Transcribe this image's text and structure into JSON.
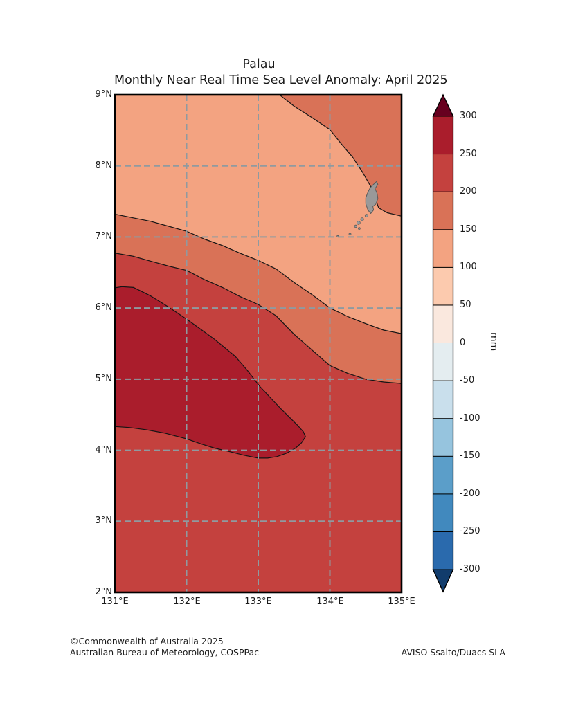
{
  "title": {
    "line1": "Palau",
    "line2": "Monthly Near Real Time Sea Level Anomaly: April 2025"
  },
  "map": {
    "x_axis": {
      "ticks": [
        {
          "label": "131°E",
          "lon": 131
        },
        {
          "label": "132°E",
          "lon": 132
        },
        {
          "label": "133°E",
          "lon": 133
        },
        {
          "label": "134°E",
          "lon": 134
        },
        {
          "label": "135°E",
          "lon": 135
        }
      ]
    },
    "y_axis": {
      "ticks": [
        {
          "label": "9°N",
          "lat": 9
        },
        {
          "label": "8°N",
          "lat": 8
        },
        {
          "label": "7°N",
          "lat": 7
        },
        {
          "label": "6°N",
          "lat": 6
        },
        {
          "label": "5°N",
          "lat": 5
        },
        {
          "label": "4°N",
          "lat": 4
        },
        {
          "label": "3°N",
          "lat": 3
        },
        {
          "label": "2°N",
          "lat": 2
        }
      ]
    }
  },
  "colorbar": {
    "unit": "mm",
    "range_mm": [
      -300,
      300
    ],
    "ticks": [
      {
        "label": "300",
        "value": 300
      },
      {
        "label": "250",
        "value": 250
      },
      {
        "label": "200",
        "value": 200
      },
      {
        "label": "150",
        "value": 150
      },
      {
        "label": "100",
        "value": 100
      },
      {
        "label": "50",
        "value": 50
      },
      {
        "label": "0",
        "value": 0
      },
      {
        "label": "-50",
        "value": -50
      },
      {
        "label": "-100",
        "value": -100
      },
      {
        "label": "-150",
        "value": -150
      },
      {
        "label": "-200",
        "value": -200
      },
      {
        "label": "-250",
        "value": -250
      },
      {
        "label": "-300",
        "value": -300
      }
    ],
    "bands": [
      {
        "from": -300,
        "to": -250,
        "color": "#2a6aad"
      },
      {
        "from": -250,
        "to": -200,
        "color": "#4189be"
      },
      {
        "from": -200,
        "to": -150,
        "color": "#5b9ec9"
      },
      {
        "from": -150,
        "to": -100,
        "color": "#96c4de"
      },
      {
        "from": -100,
        "to": -50,
        "color": "#c9dfec"
      },
      {
        "from": -50,
        "to": 0,
        "color": "#e4edf0"
      },
      {
        "from": 0,
        "to": 50,
        "color": "#fae8de"
      },
      {
        "from": 50,
        "to": 100,
        "color": "#fccaae"
      },
      {
        "from": 100,
        "to": 150,
        "color": "#f3a381"
      },
      {
        "from": 150,
        "to": 200,
        "color": "#d97257"
      },
      {
        "from": 200,
        "to": 250,
        "color": "#c4413e"
      },
      {
        "from": 250,
        "to": 300,
        "color": "#aa1d2c"
      }
    ],
    "arrow_over_color": "#67001f",
    "arrow_under_color": "#113c6c"
  },
  "footer": {
    "copyright": "©Commonwealth of Australia 2025",
    "organisation": "Australian Bureau of Meteorology, COSPPac",
    "source": "AVISO Ssalto/Duacs SLA"
  },
  "chart_data": {
    "type": "heatmap",
    "subtype": "filled-contour-map",
    "title": "Palau — Monthly Near Real Time Sea Level Anomaly: April 2025",
    "unit": "mm",
    "lon_range": [
      131,
      135
    ],
    "lat_range": [
      2,
      9
    ],
    "contour_interval_mm": 50,
    "bands_present_on_map_mm": [
      [
        100,
        150
      ],
      [
        150,
        200
      ],
      [
        200,
        250
      ],
      [
        250,
        300
      ]
    ],
    "max_anomaly_band_mm": [
      250,
      300
    ],
    "max_anomaly_centre": {
      "lon": 132.3,
      "lat": 5.1
    },
    "gridlines": {
      "lons": [
        132,
        133,
        134
      ],
      "lats": [
        3,
        4,
        5,
        6,
        7,
        8
      ]
    },
    "contours": [
      {
        "value_mm": 150,
        "points": [
          [
            130.9,
            7.34
          ],
          [
            131.25,
            7.27
          ],
          [
            131.5,
            7.22
          ],
          [
            131.75,
            7.15
          ],
          [
            132,
            7.08
          ],
          [
            132.25,
            6.97
          ],
          [
            132.5,
            6.88
          ],
          [
            132.75,
            6.77
          ],
          [
            133,
            6.67
          ],
          [
            133.25,
            6.55
          ],
          [
            133.5,
            6.36
          ],
          [
            133.75,
            6.19
          ],
          [
            134,
            6.0
          ],
          [
            134.25,
            5.88
          ],
          [
            134.5,
            5.78
          ],
          [
            134.75,
            5.69
          ],
          [
            135.1,
            5.62
          ]
        ]
      },
      {
        "value_mm": 200,
        "points": [
          [
            130.9,
            6.79
          ],
          [
            131.25,
            6.73
          ],
          [
            131.5,
            6.66
          ],
          [
            131.75,
            6.59
          ],
          [
            132,
            6.53
          ],
          [
            132.25,
            6.4
          ],
          [
            132.5,
            6.29
          ],
          [
            132.75,
            6.16
          ],
          [
            133,
            6.05
          ],
          [
            133.25,
            5.89
          ],
          [
            133.5,
            5.63
          ],
          [
            133.75,
            5.41
          ],
          [
            134,
            5.19
          ],
          [
            134.25,
            5.08
          ],
          [
            134.5,
            5.0
          ],
          [
            134.75,
            4.96
          ],
          [
            135.1,
            4.93
          ]
        ]
      },
      {
        "value_mm": 150,
        "points": [
          [
            133.17,
            9.1
          ],
          [
            133.5,
            8.84
          ],
          [
            133.75,
            8.68
          ],
          [
            134,
            8.51
          ],
          [
            134.15,
            8.32
          ],
          [
            134.32,
            8.12
          ],
          [
            134.45,
            7.92
          ],
          [
            134.57,
            7.71
          ],
          [
            134.63,
            7.55
          ],
          [
            134.68,
            7.41
          ],
          [
            134.8,
            7.34
          ],
          [
            135.1,
            7.27
          ]
        ]
      },
      {
        "value_mm": 250,
        "points": [
          [
            130.9,
            6.27
          ],
          [
            131.1,
            6.3
          ],
          [
            131.26,
            6.29
          ],
          [
            131.5,
            6.17
          ],
          [
            131.74,
            6.02
          ],
          [
            132.02,
            5.83
          ],
          [
            132.2,
            5.7
          ],
          [
            132.39,
            5.56
          ],
          [
            132.68,
            5.32
          ],
          [
            132.85,
            5.12
          ],
          [
            133.02,
            4.9
          ],
          [
            133.17,
            4.74
          ],
          [
            133.31,
            4.59
          ],
          [
            133.45,
            4.45
          ],
          [
            133.55,
            4.35
          ],
          [
            133.63,
            4.26
          ],
          [
            133.66,
            4.19
          ],
          [
            133.6,
            4.1
          ],
          [
            133.52,
            4.03
          ],
          [
            133.4,
            3.96
          ],
          [
            133.26,
            3.91
          ],
          [
            133.13,
            3.89
          ],
          [
            133.0,
            3.89
          ],
          [
            132.8,
            3.93
          ],
          [
            132.6,
            3.98
          ],
          [
            132.39,
            4.03
          ],
          [
            132.2,
            4.09
          ],
          [
            132.0,
            4.16
          ],
          [
            131.7,
            4.24
          ],
          [
            131.43,
            4.29
          ],
          [
            131.2,
            4.32
          ],
          [
            130.9,
            4.34
          ]
        ]
      }
    ],
    "regions": [
      {
        "band_mm": [
          200,
          250
        ],
        "color": "#c4413e",
        "contour_ref": null,
        "closure": [
          [
            130.9,
            9.1
          ],
          [
            135.1,
            9.1
          ],
          [
            135.1,
            1.9
          ],
          [
            130.9,
            1.9
          ]
        ]
      },
      {
        "band_mm": [
          150,
          200
        ],
        "color": "#d97257",
        "contour_ref": 1,
        "closure": [
          [
            136,
            10
          ],
          [
            130,
            10
          ]
        ]
      },
      {
        "band_mm": [
          100,
          150
        ],
        "color": "#f3a381",
        "contour_ref": 0,
        "closure": [
          [
            136,
            10
          ],
          [
            130,
            10
          ]
        ]
      },
      {
        "band_mm": [
          150,
          200
        ],
        "color": "#d97257",
        "contour_ref": 2,
        "closure": [
          [
            136,
            10
          ]
        ]
      },
      {
        "band_mm": [
          250,
          300
        ],
        "color": "#aa1d2c",
        "contour_ref": 3,
        "closure": []
      }
    ],
    "island": {
      "label": "Palau",
      "fill": "#999999",
      "stroke": "#595959",
      "main_outline": [
        [
          134.61,
          7.74
        ],
        [
          134.65,
          7.78
        ],
        [
          134.67,
          7.74
        ],
        [
          134.63,
          7.68
        ],
        [
          134.66,
          7.61
        ],
        [
          134.67,
          7.54
        ],
        [
          134.64,
          7.46
        ],
        [
          134.6,
          7.43
        ],
        [
          134.61,
          7.38
        ],
        [
          134.57,
          7.33
        ],
        [
          134.53,
          7.38
        ],
        [
          134.5,
          7.47
        ],
        [
          134.5,
          7.55
        ],
        [
          134.53,
          7.63
        ],
        [
          134.56,
          7.69
        ],
        [
          134.58,
          7.71
        ]
      ],
      "islets": [
        {
          "lon": 134.51,
          "lat": 7.3,
          "r": 2.0
        },
        {
          "lon": 134.45,
          "lat": 7.25,
          "r": 2.2
        },
        {
          "lon": 134.4,
          "lat": 7.2,
          "r": 2.4
        },
        {
          "lon": 134.36,
          "lat": 7.15,
          "r": 1.8
        },
        {
          "lon": 134.41,
          "lat": 7.12,
          "r": 1.4
        },
        {
          "lon": 134.28,
          "lat": 7.04,
          "r": 1.5
        },
        {
          "lon": 134.11,
          "lat": 7.01,
          "r": 1.2
        }
      ]
    }
  }
}
